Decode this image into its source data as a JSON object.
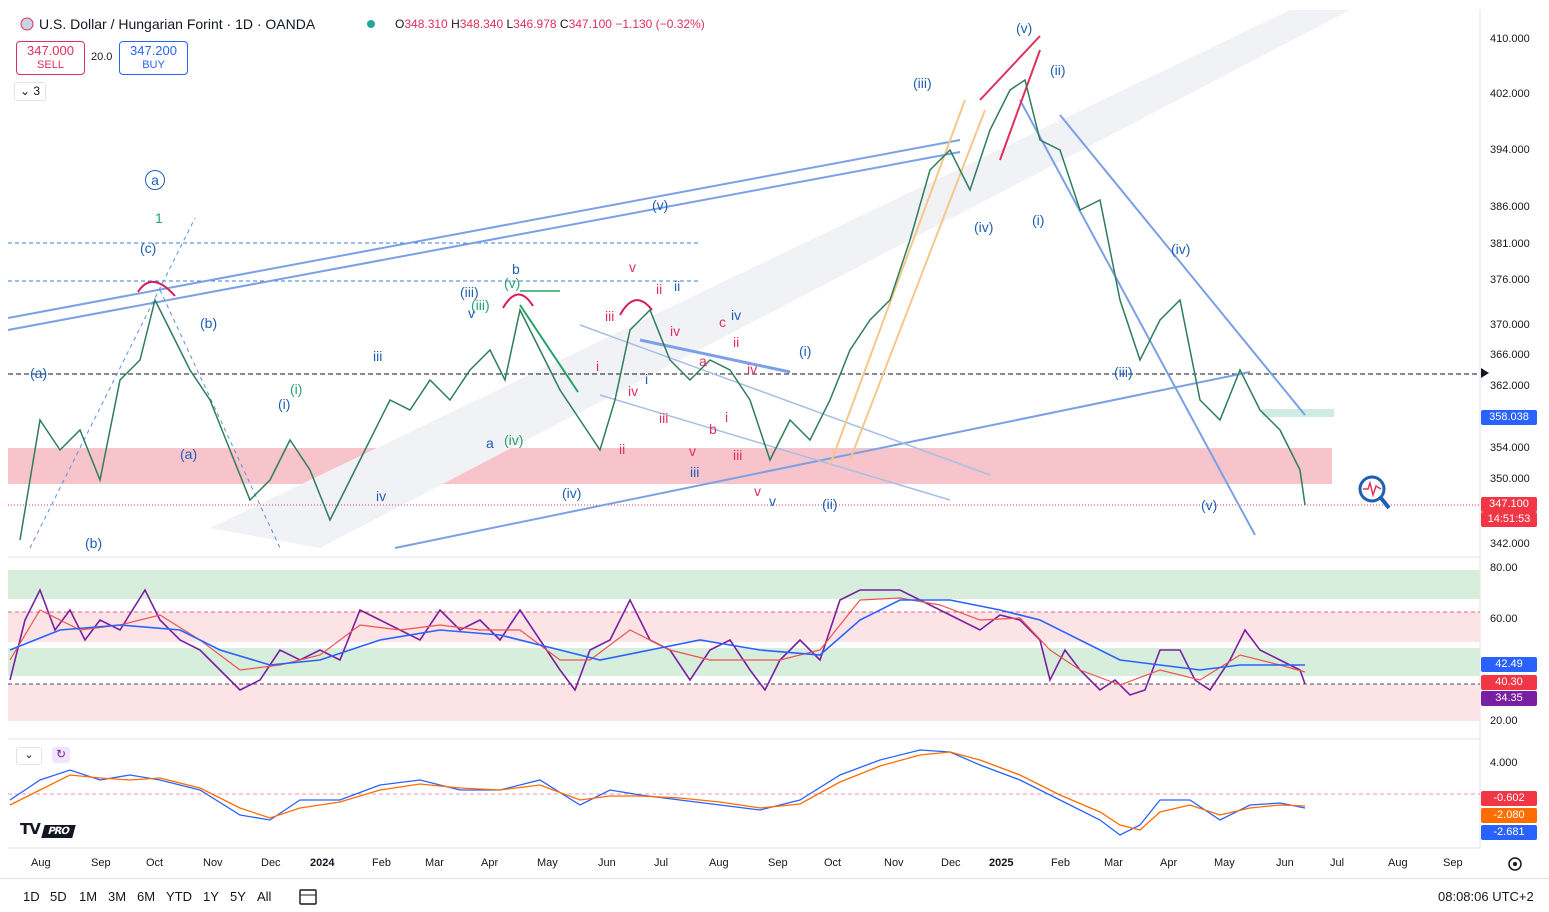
{
  "header": {
    "title": "U.S. Dollar / Hungarian Forint · 1D · OANDA",
    "open_label": "O",
    "open": "348.310",
    "high_label": "H",
    "high": "348.340",
    "low_label": "L",
    "low": "346.978",
    "close_label": "C",
    "close": "347.100",
    "change": "−1.130 (−0.32%)"
  },
  "trade": {
    "sell_price": "347.000",
    "sell_label": "SELL",
    "spread": "20.0",
    "buy_price": "347.200",
    "buy_label": "BUY"
  },
  "indicators_toggle": "3",
  "price_axis": [
    "410.000",
    "402.000",
    "394.000",
    "386.000",
    "381.000",
    "376.000",
    "370.000",
    "366.000",
    "362.000",
    "354.000",
    "350.000",
    "342.000"
  ],
  "price_tags": {
    "level": "358.038",
    "last": "347.100",
    "countdown": "14:51:53"
  },
  "rsi_axis": [
    "80.00",
    "60.00",
    "20.00"
  ],
  "rsi_tags": [
    "42.49",
    "40.30",
    "34.35"
  ],
  "macd_axis": [
    "4.000"
  ],
  "macd_tags": [
    "-0.602",
    "-2.080",
    "-2.681"
  ],
  "time_axis": [
    "Aug",
    "Sep",
    "Oct",
    "Nov",
    "Dec",
    "2024",
    "Feb",
    "Mar",
    "Apr",
    "May",
    "Jun",
    "Jul",
    "Aug",
    "Sep",
    "Oct",
    "Nov",
    "Dec",
    "2025",
    "Feb",
    "Mar",
    "Apr",
    "May",
    "Jun",
    "Jul",
    "Aug",
    "Sep"
  ],
  "ranges": [
    "1D",
    "5D",
    "1M",
    "3M",
    "6M",
    "YTD",
    "1Y",
    "5Y",
    "All"
  ],
  "clock": "08:08:06 UTC+2",
  "logo_text": "PRO",
  "wave_labels": {
    "a_circle": "a",
    "one": "1",
    "c_paren": "(c)",
    "b_paren": "(b)",
    "a_paren": "(a)",
    "a_paren2": "(a)",
    "b_paren2": "(b)",
    "i_paren": "(i)",
    "i_paren2": "(i)",
    "iii_small": "iii",
    "iv_small": "iv",
    "iii_paren": "(iii)",
    "iii_paren_g": "(iii)",
    "v_small": "v",
    "v_paren_g": "(v)",
    "b_small": "b",
    "iv_paren_g": "(iv)",
    "a_small": "a",
    "iv_paren": "(iv)",
    "v_top": "v",
    "ii_red": "ii",
    "ii_blue": "ii",
    "iii_red": "iii",
    "iv_red": "iv",
    "i_red": "i",
    "i_blue": "i",
    "iv_red2": "iv",
    "iii_red2": "iii",
    "ii_red2": "ii",
    "v_red": "v",
    "c_red": "c",
    "iv_blue": "iv",
    "ii_red3": "ii",
    "a_red": "a",
    "iv_red3": "iv",
    "i_red2": "i",
    "b_red": "b",
    "iii_red3": "iii",
    "iii_blue": "iii",
    "v_red2": "v",
    "v_blue": "v",
    "i_paren3": "(i)",
    "ii_paren": "(ii)",
    "v_paren_mid": "(v)",
    "iii_paren_top": "(iii)",
    "v_paren_top": "(v)",
    "ii_paren_top": "(ii)",
    "iv_paren_top": "(iv)",
    "i_paren_top": "(i)",
    "iv_paren_r": "(iv)",
    "iii_paren_r": "(iii)",
    "v_paren_r": "(v)"
  }
}
